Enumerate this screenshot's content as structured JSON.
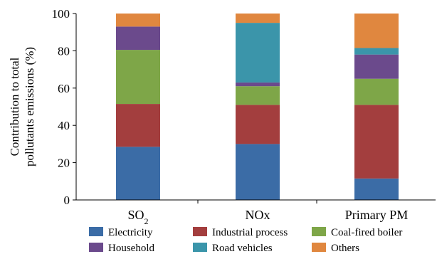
{
  "chart_data": {
    "type": "bar",
    "stacked": true,
    "categories": [
      "SO",
      "NOx",
      "Primary PM"
    ],
    "category_subscripts": [
      "2",
      "",
      ""
    ],
    "ylabel_lines": [
      "Contribution to total",
      "pollutants emissions (%)"
    ],
    "ylim": [
      0,
      100
    ],
    "yticks": [
      0,
      20,
      40,
      60,
      80,
      100
    ],
    "grid": false,
    "legend_position": "bottom",
    "series": [
      {
        "name": "Electricity",
        "color": "#3b6ca6",
        "values": [
          28.5,
          30,
          11.5
        ]
      },
      {
        "name": "Industrial process",
        "color": "#a33e3e",
        "values": [
          23,
          21,
          39.5
        ]
      },
      {
        "name": "Coal-fired boiler",
        "color": "#7ea648",
        "values": [
          29,
          10,
          14
        ]
      },
      {
        "name": "Household",
        "color": "#6b4a8c",
        "values": [
          12.5,
          2,
          13
        ]
      },
      {
        "name": "Road vehicles",
        "color": "#3b95aa",
        "values": [
          0,
          32,
          3.5
        ]
      },
      {
        "name": "Others",
        "color": "#e0873f",
        "values": [
          7,
          5,
          18.5
        ]
      }
    ]
  }
}
